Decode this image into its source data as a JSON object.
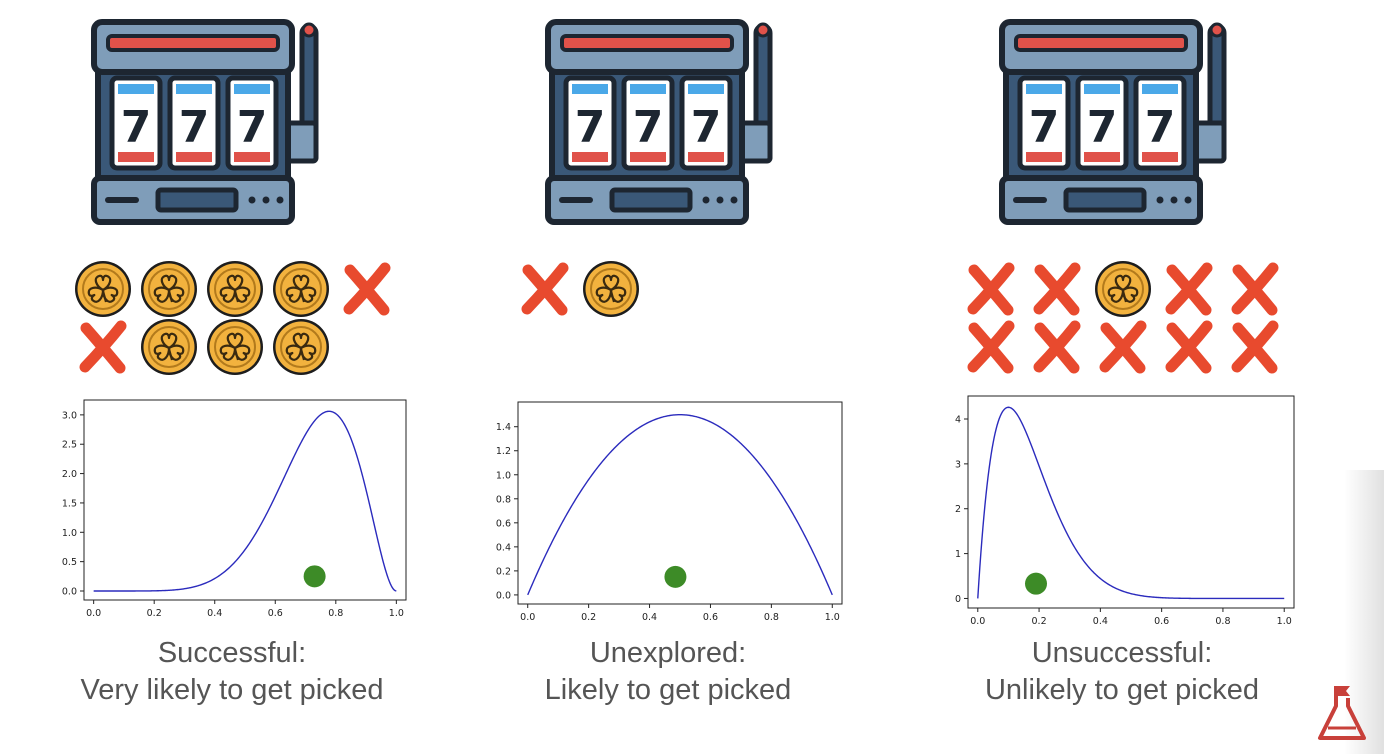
{
  "panels": [
    {
      "id": "successful",
      "reels": [
        "7",
        "7",
        "7"
      ],
      "outcomes": [
        [
          "coin",
          "coin",
          "coin",
          "coin",
          "miss"
        ],
        [
          "miss",
          "coin",
          "coin",
          "coin"
        ]
      ],
      "caption_title": "Successful:",
      "caption_sub": "Very likely to get picked"
    },
    {
      "id": "unexplored",
      "reels": [
        "7",
        "7",
        "7"
      ],
      "outcomes": [
        [
          "miss",
          "coin"
        ]
      ],
      "caption_title": "Unexplored:",
      "caption_sub": "Likely to get picked"
    },
    {
      "id": "unsuccessful",
      "reels": [
        "7",
        "7",
        "7"
      ],
      "outcomes": [
        [
          "miss",
          "miss",
          "coin",
          "miss",
          "miss"
        ],
        [
          "miss",
          "miss",
          "miss",
          "miss",
          "miss"
        ]
      ],
      "caption_title": "Unsuccessful:",
      "caption_sub": "Unlikely to get picked"
    }
  ],
  "chart_data": [
    {
      "type": "line",
      "distribution": "beta",
      "alpha": 8,
      "beta": 3,
      "xlim": [
        0,
        1
      ],
      "ylim": [
        0,
        3.1
      ],
      "xticks": [
        "0.0",
        "0.2",
        "0.4",
        "0.6",
        "0.8",
        "1.0"
      ],
      "xtick_values": [
        0,
        0.2,
        0.4,
        0.6,
        0.8,
        1.0
      ],
      "yticks": [
        "0.0",
        "0.5",
        "1.0",
        "1.5",
        "2.0",
        "2.5",
        "3.0"
      ],
      "ytick_values": [
        0,
        0.5,
        1.0,
        1.5,
        2.0,
        2.5,
        3.0
      ],
      "sample_point": {
        "x": 0.73,
        "y": 0.25
      },
      "line_color": "#2b2bbd",
      "point_color": "#3d8b27"
    },
    {
      "type": "line",
      "distribution": "beta",
      "alpha": 2,
      "beta": 2,
      "xlim": [
        0,
        1
      ],
      "ylim": [
        0,
        1.53
      ],
      "xticks": [
        "0.0",
        "0.2",
        "0.4",
        "0.6",
        "0.8",
        "1.0"
      ],
      "xtick_values": [
        0,
        0.2,
        0.4,
        0.6,
        0.8,
        1.0
      ],
      "yticks": [
        "0.0",
        "0.2",
        "0.4",
        "0.6",
        "0.8",
        "1.0",
        "1.2",
        "1.4"
      ],
      "ytick_values": [
        0,
        0.2,
        0.4,
        0.6,
        0.8,
        1.0,
        1.2,
        1.4
      ],
      "sample_point": {
        "x": 0.485,
        "y": 0.15
      },
      "line_color": "#2b2bbd",
      "point_color": "#3d8b27"
    },
    {
      "type": "line",
      "distribution": "beta",
      "alpha": 2,
      "beta": 10,
      "xlim": [
        0,
        1
      ],
      "ylim": [
        0,
        4.3
      ],
      "xticks": [
        "0.0",
        "0.2",
        "0.4",
        "0.6",
        "0.8",
        "1.0"
      ],
      "xtick_values": [
        0,
        0.2,
        0.4,
        0.6,
        0.8,
        1.0
      ],
      "yticks": [
        "0",
        "1",
        "2",
        "3",
        "4"
      ],
      "ytick_values": [
        0,
        1,
        2,
        3,
        4
      ],
      "sample_point": {
        "x": 0.19,
        "y": 0.33
      },
      "line_color": "#2b2bbd",
      "point_color": "#3d8b27"
    }
  ],
  "colors": {
    "outline": "#1d2631",
    "machine_body": "#7f9db9",
    "machine_dark": "#3a5878",
    "display_red": "#e0524a",
    "reel_blue": "#4aa8e8",
    "coin_gold": "#f2b23e",
    "miss_red": "#e84a2e",
    "caption_text": "#555555"
  }
}
